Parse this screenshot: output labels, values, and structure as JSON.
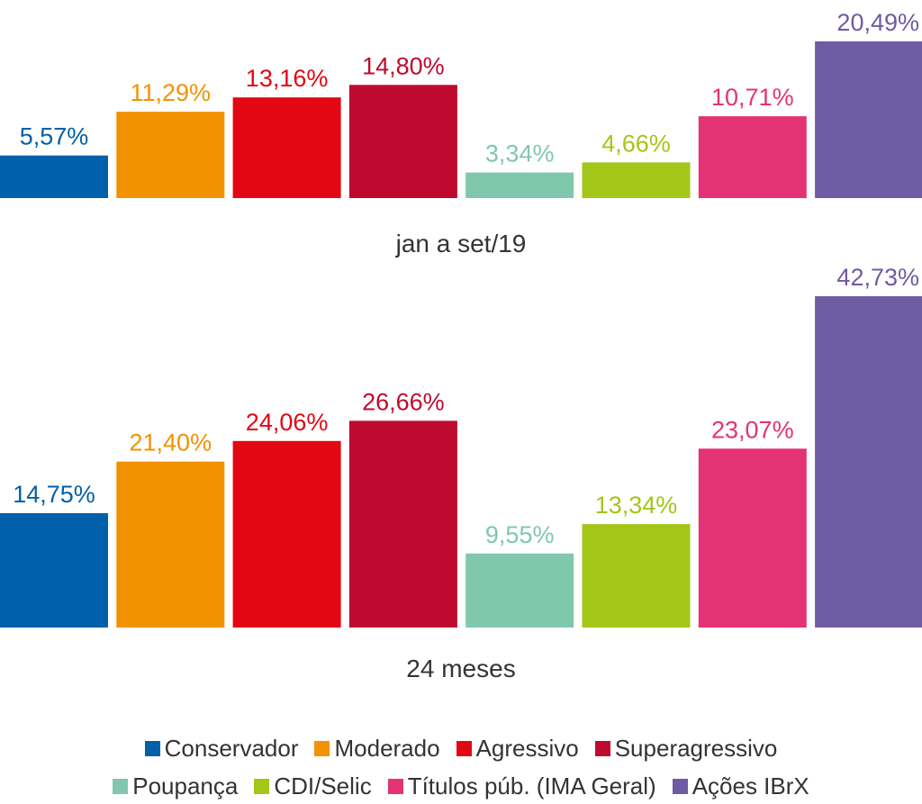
{
  "chart_data": [
    {
      "type": "bar",
      "title": "",
      "xlabel": "jan a set/19",
      "ylabel": "",
      "categories": [
        "Conservador",
        "Moderado",
        "Agressivo",
        "Superagressivo",
        "Poupança",
        "CDI/Selic",
        "Títulos púb. (IMA Geral)",
        "Ações IBrX"
      ],
      "values": [
        5.57,
        11.29,
        13.16,
        14.8,
        3.34,
        4.66,
        10.71,
        20.49
      ],
      "data_labels": [
        "5,57%",
        "11,29%",
        "13,16%",
        "14,80%",
        "3,34%",
        "4,66%",
        "10,71%",
        "20,49%"
      ],
      "grid": false
    },
    {
      "type": "bar",
      "title": "",
      "xlabel": "24 meses",
      "ylabel": "",
      "categories": [
        "Conservador",
        "Moderado",
        "Agressivo",
        "Superagressivo",
        "Poupança",
        "CDI/Selic",
        "Títulos púb. (IMA Geral)",
        "Ações IBrX"
      ],
      "values": [
        14.75,
        21.4,
        24.06,
        26.66,
        9.55,
        13.34,
        23.07,
        42.73
      ],
      "data_labels": [
        "14,75%",
        "21,40%",
        "24,06%",
        "26,66%",
        "9,55%",
        "13,34%",
        "23,07%",
        "42,73%"
      ],
      "grid": false
    }
  ],
  "colors": [
    "#0060a9",
    "#f39200",
    "#e30613",
    "#be0a2f",
    "#7fc8ad",
    "#a3c619",
    "#e33374",
    "#6f5ba2"
  ],
  "legend": {
    "placement": "bottom",
    "row1": [
      {
        "label": "Conservador",
        "color": "#0060a9"
      },
      {
        "label": "Moderado",
        "color": "#f39200"
      },
      {
        "label": "Agressivo",
        "color": "#e30613"
      },
      {
        "label": "Superagressivo",
        "color": "#be0a2f"
      }
    ],
    "row2": [
      {
        "label": "Poupança",
        "color": "#7fc8ad"
      },
      {
        "label": "CDI/Selic",
        "color": "#a3c619"
      },
      {
        "label": "Títulos púb. (IMA Geral)",
        "color": "#e33374"
      },
      {
        "label": "Ações IBrX",
        "color": "#6f5ba2"
      }
    ]
  }
}
